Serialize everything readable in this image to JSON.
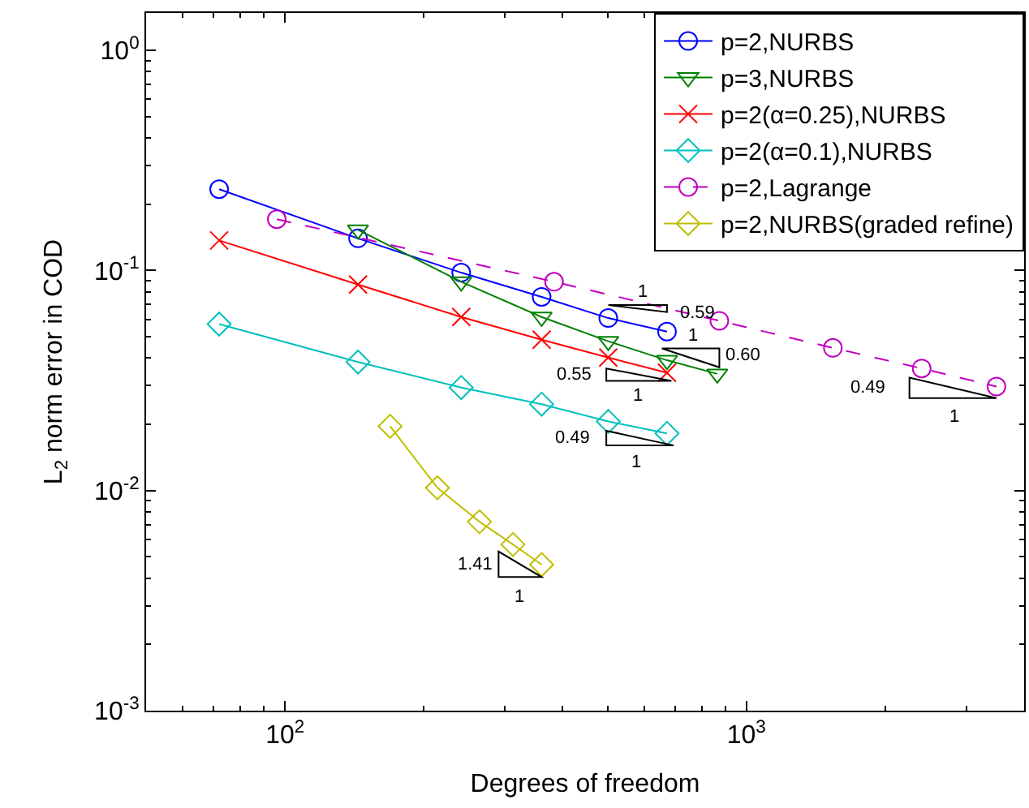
{
  "chart_data": {
    "type": "line",
    "xlabel": "Degrees of freedom",
    "ylabel": "L$_{2}$ norm error in COD",
    "log": "xy",
    "legend": "top right",
    "xlim": [
      50,
      4000
    ],
    "ylim": [
      0.001,
      1.48
    ],
    "xticks": [
      {
        "value": 100,
        "label": "10$^{2}$"
      },
      {
        "value": 1000,
        "label": "10$^{3}$"
      }
    ],
    "yticks": [
      {
        "value": 0.001,
        "label": "10$^{-3}$"
      },
      {
        "value": 0.01,
        "label": "10$^{-2}$"
      },
      {
        "value": 0.1,
        "label": "10$^{-1}$"
      },
      {
        "value": 1,
        "label": "10$^{0}$"
      }
    ],
    "series": [
      {
        "name": "p=2,NURBS",
        "color": "#0000ff",
        "marker": "circle",
        "line_style": "solid",
        "x": [
          72,
          144,
          241,
          360,
          502,
          673
        ],
        "values": [
          0.234,
          0.14,
          0.0978,
          0.0759,
          0.0608,
          0.0528
        ]
      },
      {
        "name": "p=3,NURBS",
        "color": "#008000",
        "marker": "triangle",
        "line_style": "solid",
        "x": [
          144,
          241,
          360,
          502,
          673,
          865
        ],
        "values": [
          0.153,
          0.0889,
          0.0615,
          0.0477,
          0.0391,
          0.0339
        ]
      },
      {
        "name": "p=2(α=0.25),NURBS",
        "color": "#ff0000",
        "marker": "cross",
        "line_style": "solid",
        "x": [
          72,
          144,
          241,
          360,
          502,
          673
        ],
        "values": [
          0.137,
          0.0864,
          0.0615,
          0.0485,
          0.0402,
          0.0343
        ]
      },
      {
        "name": "p=2(α=0.1),NURBS",
        "color": "#00bfbf",
        "marker": "diamond",
        "line_style": "solid",
        "x": [
          72,
          144,
          241,
          360,
          502,
          673
        ],
        "values": [
          0.0571,
          0.0384,
          0.0294,
          0.0247,
          0.0206,
          0.0182
        ]
      },
      {
        "name": "p=2,Lagrange",
        "color": "#bf00bf",
        "marker": "circle",
        "line_style": "dashed",
        "x": [
          96,
          383,
          874,
          1540,
          2399,
          3484
        ],
        "values": [
          0.171,
          0.0889,
          0.0591,
          0.0445,
          0.0359,
          0.0297
        ]
      },
      {
        "name": "p=2,NURBS(graded refine)",
        "color": "#bfbf00",
        "marker": "diamond",
        "line_style": "solid",
        "x": [
          169,
          214,
          264,
          312,
          360
        ],
        "values": [
          0.0196,
          0.0103,
          0.00722,
          0.00569,
          0.00461
        ]
      }
    ],
    "annotations": [
      "1",
      "0.59",
      "1",
      "0.60",
      "0.55",
      "1",
      "0.49",
      "1",
      "0.49",
      "1",
      "1.41",
      "1"
    ]
  }
}
